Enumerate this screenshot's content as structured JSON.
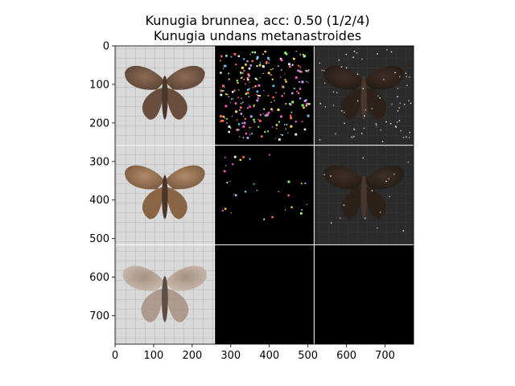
{
  "chart_data": {
    "type": "image-grid",
    "title_lines": [
      "Kunugia brunnea, acc: 0.50 (1/2/4)",
      "Kunugia undans metanastroides"
    ],
    "xlim": [
      0,
      774
    ],
    "ylim": [
      774,
      0
    ],
    "x_ticks": [
      0,
      100,
      200,
      300,
      400,
      500,
      600,
      700
    ],
    "y_ticks": [
      0,
      100,
      200,
      300,
      400,
      500,
      600,
      700
    ],
    "grid": false,
    "tiles": [
      {
        "row": 0,
        "col": 0,
        "kind": "moth-photo",
        "tone": "dark-brown"
      },
      {
        "row": 0,
        "col": 1,
        "kind": "saliency-map",
        "tone": "sparse-colored"
      },
      {
        "row": 0,
        "col": 2,
        "kind": "masked-photo",
        "tone": "dark"
      },
      {
        "row": 1,
        "col": 0,
        "kind": "moth-photo",
        "tone": "brown"
      },
      {
        "row": 1,
        "col": 1,
        "kind": "saliency-map",
        "tone": "very-sparse"
      },
      {
        "row": 1,
        "col": 2,
        "kind": "masked-photo",
        "tone": "dark"
      },
      {
        "row": 2,
        "col": 0,
        "kind": "moth-photo",
        "tone": "pale-overlay"
      },
      {
        "row": 2,
        "col": 1,
        "kind": "blank",
        "tone": "black"
      },
      {
        "row": 2,
        "col": 2,
        "kind": "blank",
        "tone": "black"
      }
    ]
  }
}
